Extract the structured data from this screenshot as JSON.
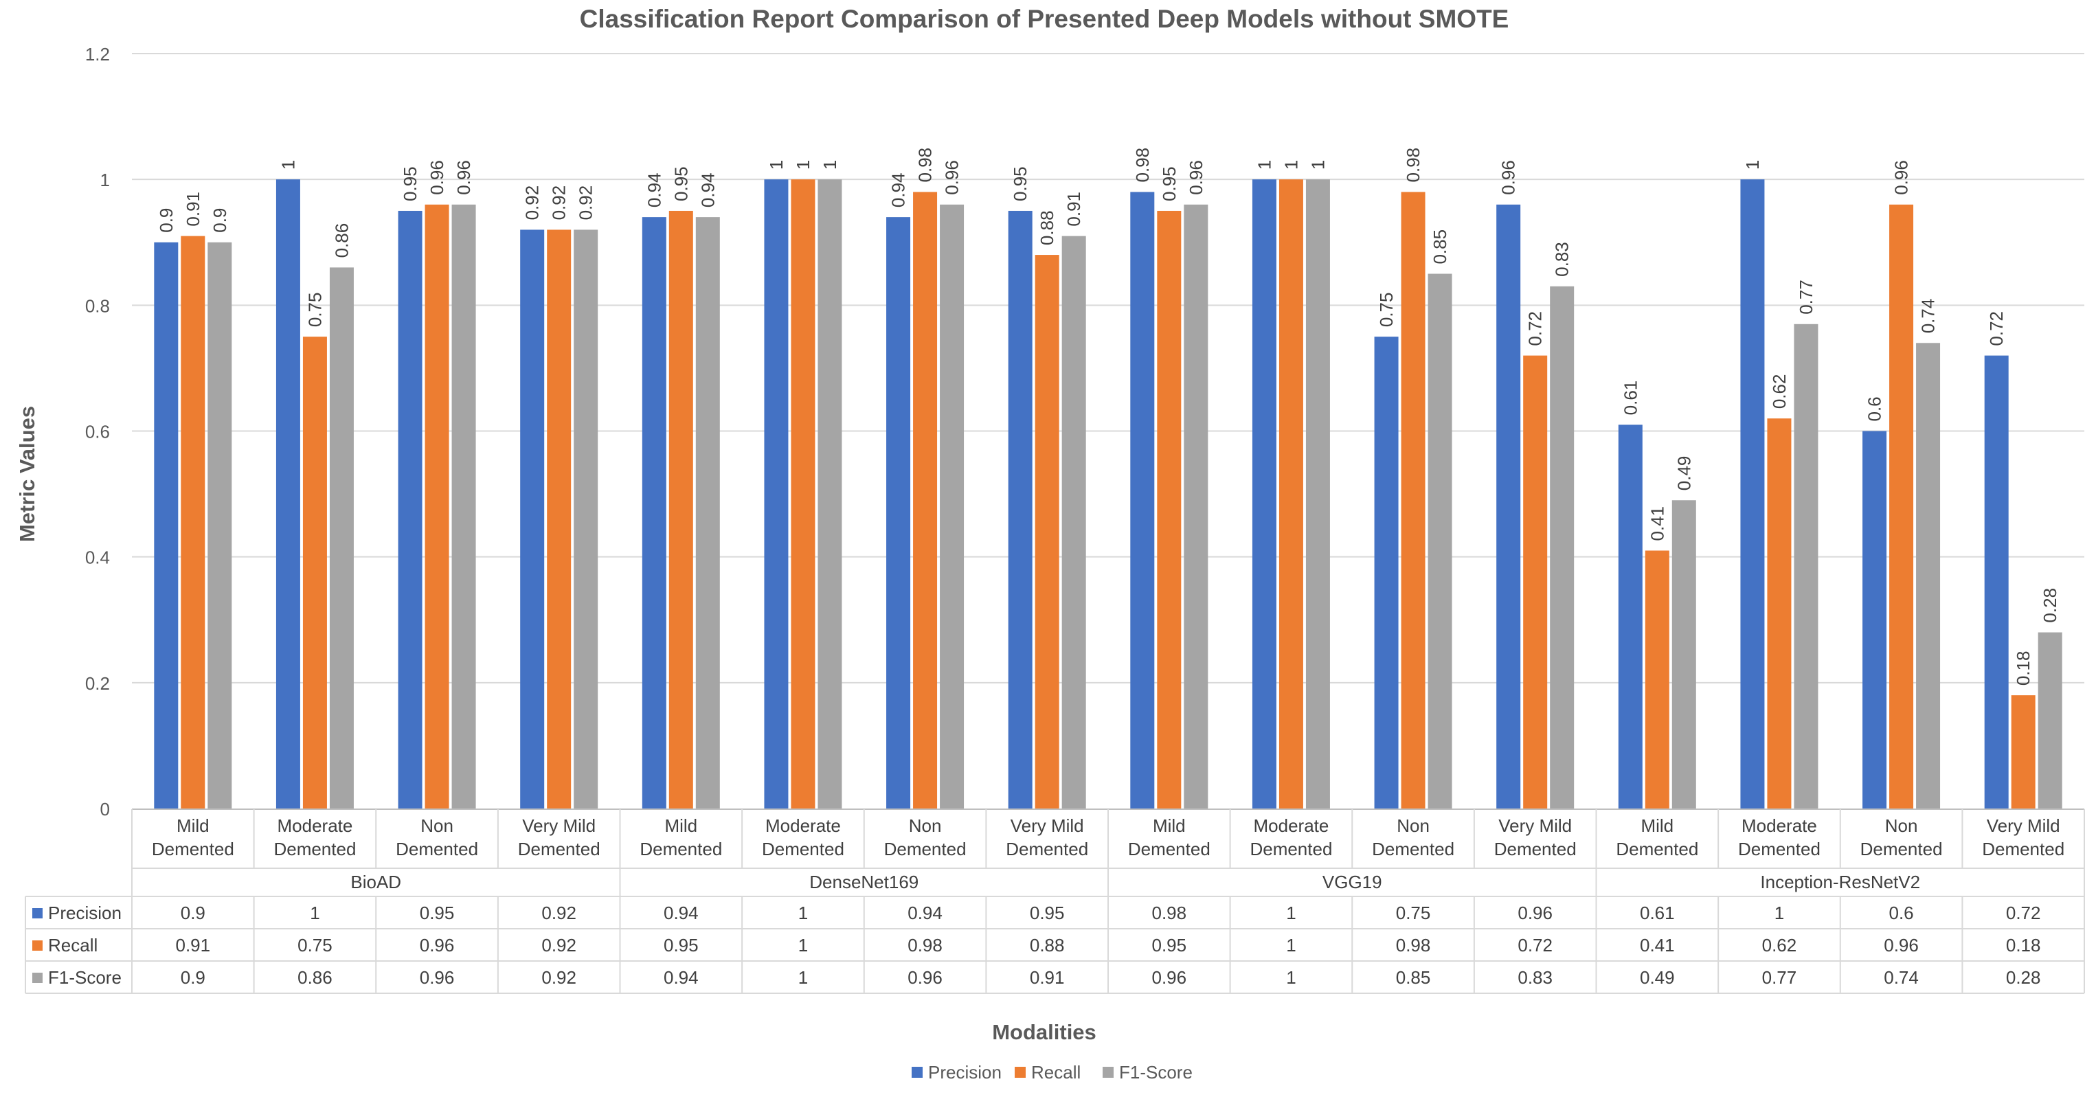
{
  "chart_data": {
    "type": "bar",
    "title": "Classification Report Comparison of Presented Deep Models without SMOTE",
    "xlabel": "Modalities",
    "ylabel": "Metric Values",
    "ylim": [
      0,
      1.2
    ],
    "yticks": [
      "0",
      "0.2",
      "0.4",
      "0.6",
      "0.8",
      "1",
      "1.2"
    ],
    "grid": true,
    "legend_position": "bottom",
    "groups": [
      {
        "name": "BioAD",
        "categories": [
          [
            "Mild",
            "Demented"
          ],
          [
            "Moderate",
            "Demented"
          ],
          [
            "Non",
            "Demented"
          ],
          [
            "Very Mild",
            "Demented"
          ]
        ]
      },
      {
        "name": "DenseNet169",
        "categories": [
          [
            "Mild",
            "Demented"
          ],
          [
            "Moderate",
            "Demented"
          ],
          [
            "Non",
            "Demented"
          ],
          [
            "Very Mild",
            "Demented"
          ]
        ]
      },
      {
        "name": "VGG19",
        "categories": [
          [
            "Mild",
            "Demented"
          ],
          [
            "Moderate",
            "Demented"
          ],
          [
            "Non",
            "Demented"
          ],
          [
            "Very Mild",
            "Demented"
          ]
        ]
      },
      {
        "name": "Inception-ResNetV2",
        "categories": [
          [
            "Mild",
            "Demented"
          ],
          [
            "Moderate",
            "Demented"
          ],
          [
            "Non",
            "Demented"
          ],
          [
            "Very Mild",
            "Demented"
          ]
        ]
      }
    ],
    "series": [
      {
        "name": "Precision",
        "color": "#4472C4",
        "values": [
          0.9,
          1,
          0.95,
          0.92,
          0.94,
          1,
          0.94,
          0.95,
          0.98,
          1,
          0.75,
          0.96,
          0.61,
          1,
          0.6,
          0.72
        ]
      },
      {
        "name": "Recall",
        "color": "#ED7D31",
        "values": [
          0.91,
          0.75,
          0.96,
          0.92,
          0.95,
          1,
          0.98,
          0.88,
          0.95,
          1,
          0.98,
          0.72,
          0.41,
          0.62,
          0.96,
          0.18
        ]
      },
      {
        "name": "F1-Score",
        "color": "#A5A5A5",
        "values": [
          0.9,
          0.86,
          0.96,
          0.92,
          0.94,
          1,
          0.96,
          0.91,
          0.96,
          1,
          0.85,
          0.83,
          0.49,
          0.77,
          0.74,
          0.28
        ]
      }
    ]
  }
}
